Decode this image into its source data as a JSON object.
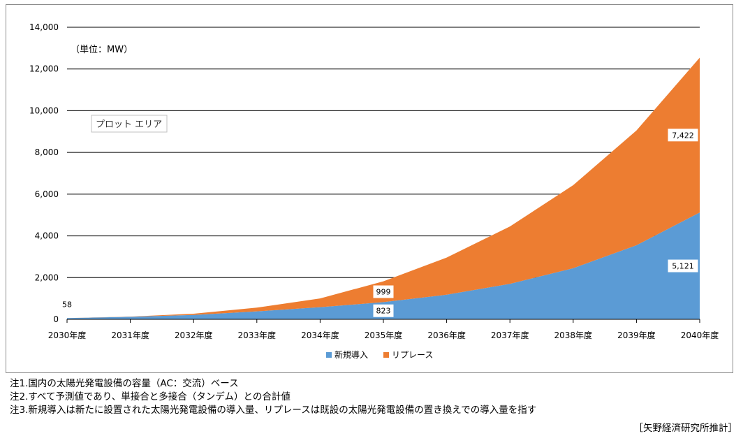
{
  "chart_data": {
    "type": "area",
    "stacked": true,
    "unit_label": "（単位：MW）",
    "plot_area_tag": "プロット エリア",
    "categories": [
      "2030年度",
      "2031年度",
      "2032年度",
      "2033年度",
      "2034年度",
      "2035年度",
      "2036年度",
      "2037年度",
      "2038年度",
      "2039年度",
      "2040年度"
    ],
    "series": [
      {
        "name": "新規導入",
        "color": "#5b9bd5",
        "values": [
          58,
          120,
          210,
          380,
          580,
          823,
          1180,
          1700,
          2450,
          3550,
          5121
        ]
      },
      {
        "name": "リプレース",
        "color": "#ed7d31",
        "values": [
          0,
          10,
          60,
          180,
          420,
          999,
          1780,
          2750,
          3980,
          5500,
          7422
        ]
      }
    ],
    "ylim": [
      0,
      14000
    ],
    "yticks": [
      0,
      2000,
      4000,
      6000,
      8000,
      10000,
      12000,
      14000
    ],
    "ytick_labels": [
      "0",
      "2,000",
      "4,000",
      "6,000",
      "8,000",
      "10,000",
      "12,000",
      "14,000"
    ],
    "data_labels": [
      {
        "series": 0,
        "index": 0,
        "text": "58"
      },
      {
        "series": 0,
        "index": 5,
        "text": "823"
      },
      {
        "series": 1,
        "index": 5,
        "text": "999"
      },
      {
        "series": 0,
        "index": 10,
        "text": "5,121"
      },
      {
        "series": 1,
        "index": 10,
        "text": "7,422"
      }
    ],
    "grid": true,
    "legend_position": "bottom"
  },
  "notes": [
    "注1.国内の太陽光発電設備の容量（AC：交流）ベース",
    "注2.すべて予測値であり、単接合と多接合（タンデム）との合計値",
    "注3.新規導入は新たに設置された太陽光発電設備の導入量、リプレースは既設の太陽光発電設備の置き換えでの導入量を指す"
  ],
  "source": "［矢野経済研究所推計］"
}
